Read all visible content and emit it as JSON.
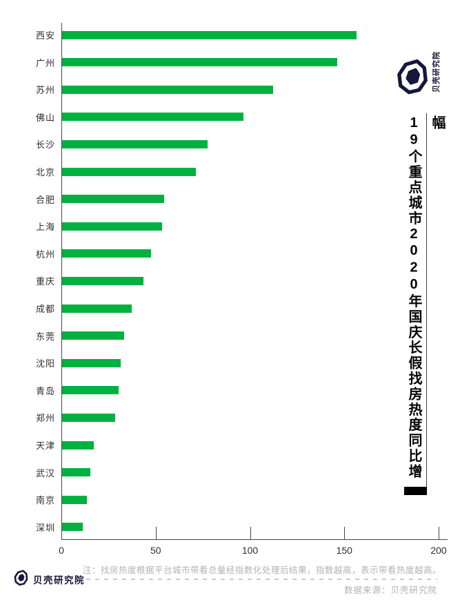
{
  "title": {
    "text": "19个重点城市2020年国庆长假找房热度同比增幅"
  },
  "brand": {
    "name": "贝壳研究院",
    "icon": "beike-shell-icon",
    "color": "#16173a"
  },
  "footer": {
    "note": "注：找房热度根据平台城市带看总量经指数化处理后结果，指数越高，表示带看热度越高。",
    "source": "数据来源：贝壳研究院"
  },
  "chart_data": {
    "type": "bar",
    "orientation": "horizontal",
    "title": "19个重点城市2020年国庆长假找房热度同比增幅",
    "categories": [
      "西安",
      "广州",
      "苏州",
      "佛山",
      "长沙",
      "北京",
      "合肥",
      "上海",
      "杭州",
      "重庆",
      "成都",
      "东莞",
      "沈阳",
      "青岛",
      "郑州",
      "天津",
      "武汉",
      "南京",
      "深圳"
    ],
    "values": [
      156,
      146,
      112,
      96,
      77,
      71,
      54,
      53,
      47,
      43,
      37,
      33,
      31,
      30,
      28,
      17,
      15,
      13,
      11
    ],
    "xlabel": "",
    "ylabel": "",
    "xlim": [
      0,
      200
    ],
    "xticks": [
      0,
      50,
      100,
      150,
      200
    ],
    "grid": false,
    "legend": null,
    "bar_color": "#00b140",
    "axis_color": "#454545",
    "label_color": "#2d2d2d"
  }
}
